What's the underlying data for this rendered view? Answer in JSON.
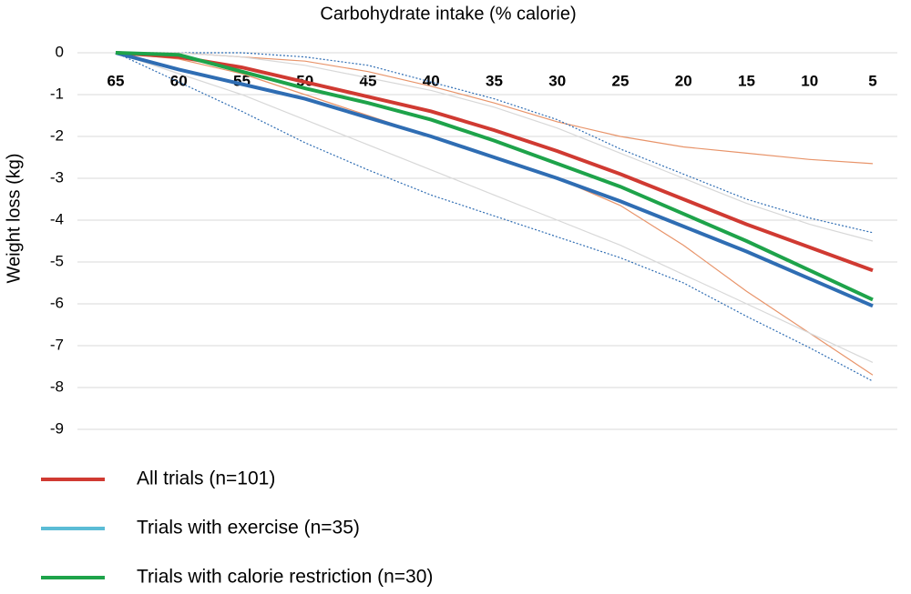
{
  "chart_data": {
    "type": "line",
    "title": "Carbohydrate intake (% calorie)",
    "y_label": "Weight loss (kg)",
    "x": [
      65,
      60,
      55,
      50,
      45,
      40,
      35,
      30,
      25,
      20,
      15,
      10,
      5
    ],
    "xlim": [
      65,
      5
    ],
    "xticks": [
      65,
      60,
      55,
      50,
      45,
      40,
      35,
      30,
      25,
      20,
      15,
      10,
      5
    ],
    "ylim": [
      0,
      -9
    ],
    "yticks": [
      0,
      -1,
      -2,
      -3,
      -4,
      -5,
      -6,
      -7,
      -8,
      -9
    ],
    "grid": true,
    "legend": "bottom",
    "series": [
      {
        "name": "All trials (n=101)",
        "color": "#d03a32",
        "legend_color": "#d03a32",
        "values": [
          0,
          -0.1,
          -0.35,
          -0.7,
          -1.05,
          -1.4,
          -1.85,
          -2.35,
          -2.9,
          -3.5,
          -4.1,
          -4.65,
          -5.2
        ]
      },
      {
        "name": "Trials with exercise (n=35)",
        "color": "#2f6db3",
        "legend_color": "#5bbcd6",
        "values": [
          0,
          -0.4,
          -0.75,
          -1.1,
          -1.55,
          -2.0,
          -2.5,
          -3.0,
          -3.55,
          -4.15,
          -4.75,
          -5.4,
          -6.05
        ]
      },
      {
        "name": "Trials with calorie restriction (n=30)",
        "color": "#1ea34a",
        "legend_color": "#1ea34a",
        "values": [
          0,
          -0.05,
          -0.45,
          -0.85,
          -1.2,
          -1.6,
          -2.1,
          -2.65,
          -3.2,
          -3.85,
          -4.5,
          -5.2,
          -5.9
        ]
      }
    ],
    "intervals": [
      {
        "color": "#e8946a",
        "dash": "none",
        "upper": [
          0,
          0,
          -0.1,
          -0.2,
          -0.45,
          -0.8,
          -1.2,
          -1.65,
          -2.0,
          -2.25,
          -2.4,
          -2.55,
          -2.65
        ],
        "lower": [
          0,
          -0.15,
          -0.5,
          -1.0,
          -1.5,
          -2.0,
          -2.5,
          -3.0,
          -3.65,
          -4.6,
          -5.7,
          -6.7,
          -7.7
        ]
      },
      {
        "color": "#2f6db3",
        "dash": "2,2",
        "upper": [
          0,
          0,
          0,
          -0.1,
          -0.3,
          -0.7,
          -1.1,
          -1.6,
          -2.3,
          -2.9,
          -3.5,
          -3.95,
          -4.3
        ],
        "lower": [
          0,
          -0.7,
          -1.4,
          -2.15,
          -2.8,
          -3.4,
          -3.9,
          -4.4,
          -4.9,
          -5.5,
          -6.3,
          -7.05,
          -7.85
        ]
      },
      {
        "color": "#d8d8d8",
        "dash": "none",
        "upper": [
          0,
          0,
          -0.1,
          -0.3,
          -0.6,
          -0.9,
          -1.3,
          -1.8,
          -2.4,
          -3.0,
          -3.6,
          -4.1,
          -4.5
        ],
        "lower": [
          0,
          -0.5,
          -1.0,
          -1.6,
          -2.2,
          -2.8,
          -3.4,
          -4.0,
          -4.6,
          -5.3,
          -6.0,
          -6.7,
          -7.4
        ]
      }
    ]
  }
}
